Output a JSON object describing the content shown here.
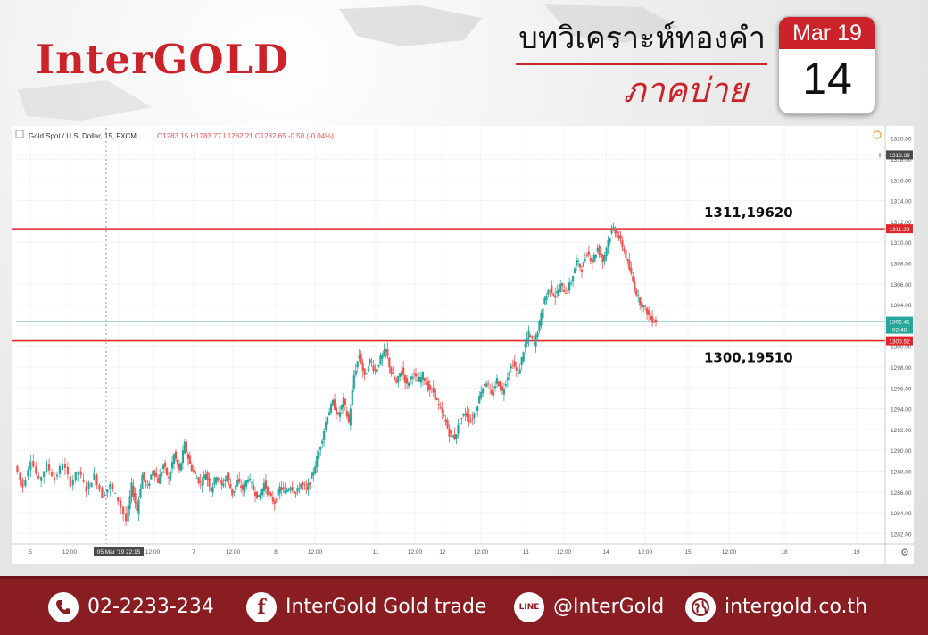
{
  "header": {
    "logo": "InterGOLD",
    "title_main": "บทวิเคราะห์ทองคำ",
    "title_sub": "ภาคบ่าย",
    "calendar_month": "Mar 19",
    "calendar_day": "14"
  },
  "chart_data": {
    "type": "candlestick",
    "symbol_label": "Gold Spot / U.S. Dollar, 15, FXCM",
    "ohlc_readout": {
      "open": "O1283.15",
      "high": "H1283.77",
      "low": "L1282.21",
      "close": "C1282.65",
      "change": "-0.50 (-0.04%)"
    },
    "y_range": [
      1281,
      1321
    ],
    "y_ticks": [
      "1320.00",
      "1318.00",
      "1316.00",
      "1314.00",
      "1312.00",
      "1310.00",
      "1308.00",
      "1306.00",
      "1304.00",
      "1302.00",
      "1300.00",
      "1298.00",
      "1296.00",
      "1294.00",
      "1292.00",
      "1290.00",
      "1288.00",
      "1286.00",
      "1284.00",
      "1282.00"
    ],
    "x_ticks": [
      "5",
      "12:00",
      "05 Mar '19  22:15",
      "12:00",
      "7",
      "12:00",
      "8",
      "12:00",
      "11",
      "12:00",
      "12",
      "12:00",
      "13",
      "12:00",
      "14",
      "12:00",
      "15",
      "12:00",
      "18",
      "19"
    ],
    "price_tags": [
      {
        "value": 1318.39,
        "label": "1318.39",
        "style": "crosshair"
      },
      {
        "value": 1311.29,
        "label": "1311.29",
        "style": "resistance"
      },
      {
        "value": 1302.41,
        "label": "1302.41",
        "style": "current"
      },
      {
        "value": 1300.52,
        "label": "1300.52",
        "style": "support"
      }
    ],
    "countdown": "02:48",
    "levels": [
      {
        "name": "resistance",
        "value": 1311.29,
        "annotation": "1311,19620"
      },
      {
        "name": "support",
        "value": 1300.52,
        "annotation": "1300,19510"
      }
    ],
    "price_path": [
      [
        0,
        1288.5
      ],
      [
        3,
        1286.5
      ],
      [
        6,
        1289.2
      ],
      [
        9,
        1287.0
      ],
      [
        12,
        1288.6
      ],
      [
        15,
        1287.2
      ],
      [
        18,
        1288.8
      ],
      [
        21,
        1286.8
      ],
      [
        24,
        1288.0
      ],
      [
        27,
        1286.2
      ],
      [
        30,
        1287.6
      ],
      [
        33,
        1285.6
      ],
      [
        36,
        1286.6
      ],
      [
        39,
        1285.2
      ],
      [
        42,
        1283.2
      ],
      [
        44,
        1286.6
      ],
      [
        46,
        1284.2
      ],
      [
        48,
        1287.6
      ],
      [
        50,
        1286.4
      ],
      [
        52,
        1288.2
      ],
      [
        54,
        1287.0
      ],
      [
        56,
        1288.6
      ],
      [
        58,
        1287.2
      ],
      [
        60,
        1289.6
      ],
      [
        62,
        1288.0
      ],
      [
        64,
        1290.6
      ],
      [
        66,
        1288.6
      ],
      [
        68,
        1287.6
      ],
      [
        70,
        1286.8
      ],
      [
        72,
        1287.8
      ],
      [
        74,
        1286.2
      ],
      [
        76,
        1287.6
      ],
      [
        78,
        1286.6
      ],
      [
        80,
        1287.6
      ],
      [
        82,
        1285.8
      ],
      [
        84,
        1287.0
      ],
      [
        86,
        1286.2
      ],
      [
        88,
        1287.4
      ],
      [
        90,
        1286.2
      ],
      [
        92,
        1285.4
      ],
      [
        94,
        1286.8
      ],
      [
        96,
        1285.6
      ],
      [
        98,
        1285.0
      ],
      [
        100,
        1286.4
      ],
      [
        102,
        1286.0
      ],
      [
        104,
        1286.6
      ],
      [
        106,
        1285.8
      ],
      [
        108,
        1286.8
      ],
      [
        110,
        1286.2
      ],
      [
        112,
        1287.4
      ],
      [
        114,
        1289.2
      ],
      [
        116,
        1291.2
      ],
      [
        118,
        1293.4
      ],
      [
        120,
        1294.6
      ],
      [
        122,
        1293.2
      ],
      [
        124,
        1294.8
      ],
      [
        126,
        1292.6
      ],
      [
        128,
        1297.2
      ],
      [
        130,
        1299.2
      ],
      [
        132,
        1297.0
      ],
      [
        134,
        1298.6
      ],
      [
        136,
        1297.6
      ],
      [
        138,
        1298.8
      ],
      [
        140,
        1299.6
      ],
      [
        142,
        1297.4
      ],
      [
        144,
        1296.4
      ],
      [
        146,
        1297.8
      ],
      [
        148,
        1296.2
      ],
      [
        150,
        1297.4
      ],
      [
        152,
        1296.6
      ],
      [
        154,
        1297.2
      ],
      [
        156,
        1296.0
      ],
      [
        158,
        1295.6
      ],
      [
        160,
        1294.2
      ],
      [
        162,
        1293.2
      ],
      [
        164,
        1291.6
      ],
      [
        166,
        1291.2
      ],
      [
        168,
        1292.8
      ],
      [
        170,
        1293.6
      ],
      [
        172,
        1292.8
      ],
      [
        174,
        1293.8
      ],
      [
        176,
        1295.8
      ],
      [
        178,
        1296.6
      ],
      [
        180,
        1295.2
      ],
      [
        182,
        1296.8
      ],
      [
        184,
        1295.6
      ],
      [
        186,
        1297.2
      ],
      [
        188,
        1298.4
      ],
      [
        190,
        1297.2
      ],
      [
        192,
        1299.6
      ],
      [
        194,
        1301.2
      ],
      [
        196,
        1300.2
      ],
      [
        198,
        1302.2
      ],
      [
        200,
        1304.6
      ],
      [
        202,
        1305.6
      ],
      [
        204,
        1304.8
      ],
      [
        206,
        1305.8
      ],
      [
        208,
        1305.2
      ],
      [
        210,
        1306.2
      ],
      [
        212,
        1308.2
      ],
      [
        214,
        1307.4
      ],
      [
        216,
        1309.0
      ],
      [
        218,
        1308.2
      ],
      [
        220,
        1309.4
      ],
      [
        222,
        1308.2
      ],
      [
        224,
        1310.2
      ],
      [
        226,
        1311.4
      ],
      [
        228,
        1310.4
      ],
      [
        230,
        1309.2
      ],
      [
        232,
        1307.4
      ],
      [
        234,
        1305.6
      ],
      [
        236,
        1304.2
      ],
      [
        238,
        1303.6
      ],
      [
        240,
        1302.6
      ],
      [
        242,
        1302.4
      ]
    ]
  },
  "footer": {
    "phone": "02-2233-234",
    "facebook": "InterGold Gold trade",
    "line": "@InterGold",
    "website": "intergold.co.th",
    "line_icon_text": "LINE"
  },
  "colors": {
    "brand_red": "#cc2229",
    "footer_red": "#8a1d22",
    "candle_up": "#26a69a",
    "candle_down": "#ef5350",
    "current_price": "#a8d8d4"
  }
}
